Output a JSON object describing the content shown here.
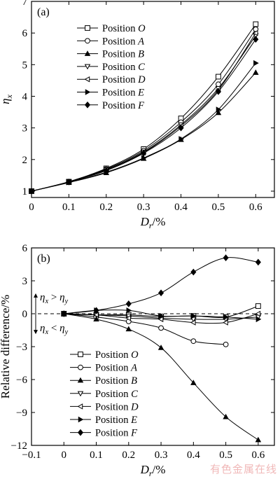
{
  "watermark": "有色金属在线",
  "chart_data": [
    {
      "panel": "(a)",
      "type": "line",
      "xlabel_main": "D",
      "xlabel_sub": "r",
      "xlabel_unit": "/%",
      "ylabel_main": "η",
      "ylabel_sub": "x",
      "xlim": [
        0,
        0.65
      ],
      "ylim": [
        0.8,
        7
      ],
      "xticks": [
        0,
        0.1,
        0.2,
        0.3,
        0.4,
        0.5,
        0.6
      ],
      "xtick_labels": [
        "0",
        "0.1",
        "0.2",
        "0.3",
        "0.4",
        "0.5",
        "0.6"
      ],
      "yticks": [
        1,
        2,
        3,
        4,
        5,
        6,
        7
      ],
      "ytick_labels": [
        "1",
        "2",
        "3",
        "4",
        "5",
        "6",
        "7"
      ],
      "legend_position": "top-left",
      "x": [
        0,
        0.1,
        0.2,
        0.3,
        0.4,
        0.5,
        0.6
      ],
      "series": [
        {
          "name": "O",
          "marker": "square-open",
          "values": [
            1.0,
            1.3,
            1.72,
            2.33,
            3.3,
            4.62,
            6.28
          ]
        },
        {
          "name": "A",
          "marker": "circle-open",
          "values": [
            1.0,
            1.3,
            1.7,
            2.28,
            3.18,
            4.38,
            6.12
          ]
        },
        {
          "name": "B",
          "marker": "triangle-up-filled",
          "values": [
            1.0,
            1.27,
            1.58,
            2.03,
            2.63,
            3.48,
            4.75
          ]
        },
        {
          "name": "C",
          "marker": "triangle-down-open",
          "values": [
            1.0,
            1.29,
            1.68,
            2.24,
            3.1,
            4.25,
            5.92
          ]
        },
        {
          "name": "D",
          "marker": "triangle-left-open",
          "values": [
            1.0,
            1.29,
            1.67,
            2.22,
            3.06,
            4.2,
            6.0
          ]
        },
        {
          "name": "E",
          "marker": "triangle-right-filled",
          "values": [
            1.0,
            1.28,
            1.6,
            2.05,
            2.65,
            3.58,
            5.05
          ]
        },
        {
          "name": "F",
          "marker": "diamond-filled",
          "values": [
            1.0,
            1.29,
            1.65,
            2.2,
            3.0,
            4.15,
            5.8
          ]
        }
      ]
    },
    {
      "panel": "(b)",
      "type": "line",
      "xlabel_main": "D",
      "xlabel_sub": "r",
      "xlabel_unit": "/%",
      "ylabel": "Relative difference/%",
      "xlim": [
        -0.1,
        0.65
      ],
      "ylim": [
        -12,
        6
      ],
      "xticks": [
        -0.1,
        0,
        0.1,
        0.2,
        0.3,
        0.4,
        0.5,
        0.6
      ],
      "xtick_labels": [
        "−0.1",
        "0",
        "0.1",
        "0.2",
        "0.3",
        "0.4",
        "0.5",
        "0.6"
      ],
      "yticks": [
        -12,
        -9,
        -6,
        -3,
        0,
        3,
        6
      ],
      "ytick_labels": [
        "−12",
        "−9",
        "−6",
        "−3",
        "0",
        "3",
        "6"
      ],
      "reference_line_y": 0,
      "legend_position": "bottom-left",
      "annotations": {
        "upper": {
          "a": "η",
          "a_sub": "x",
          "op": " > ",
          "b": "η",
          "b_sub": "y"
        },
        "lower": {
          "a": "η",
          "a_sub": "x",
          "op": " < ",
          "b": "η",
          "b_sub": "y"
        }
      },
      "x": [
        0,
        0.1,
        0.2,
        0.3,
        0.4,
        0.5,
        0.6
      ],
      "series": [
        {
          "name": "O",
          "marker": "square-open",
          "values": [
            0,
            -0.1,
            -0.1,
            -0.25,
            -0.2,
            -0.3,
            0.7
          ]
        },
        {
          "name": "A",
          "marker": "circle-open",
          "values": [
            0,
            -0.3,
            -0.7,
            -1.3,
            -2.5,
            -2.8,
            null
          ]
        },
        {
          "name": "B",
          "marker": "triangle-up-filled",
          "values": [
            0,
            -0.5,
            -1.4,
            -3.1,
            -6.3,
            -9.4,
            -11.5
          ]
        },
        {
          "name": "C",
          "marker": "triangle-down-open",
          "values": [
            0,
            -0.1,
            -0.2,
            -0.4,
            -0.5,
            -0.5,
            -0.3
          ]
        },
        {
          "name": "D",
          "marker": "triangle-left-open",
          "values": [
            0,
            -0.1,
            -0.4,
            -0.5,
            -0.8,
            -0.8,
            0.0
          ]
        },
        {
          "name": "E",
          "marker": "triangle-right-filled",
          "values": [
            0,
            0.3,
            0.3,
            -0.2,
            -0.2,
            -0.3,
            -0.5
          ]
        },
        {
          "name": "F",
          "marker": "diamond-filled",
          "values": [
            0,
            0.3,
            0.9,
            1.9,
            3.8,
            5.1,
            4.7
          ]
        }
      ]
    }
  ],
  "legend_prefix": "Position"
}
